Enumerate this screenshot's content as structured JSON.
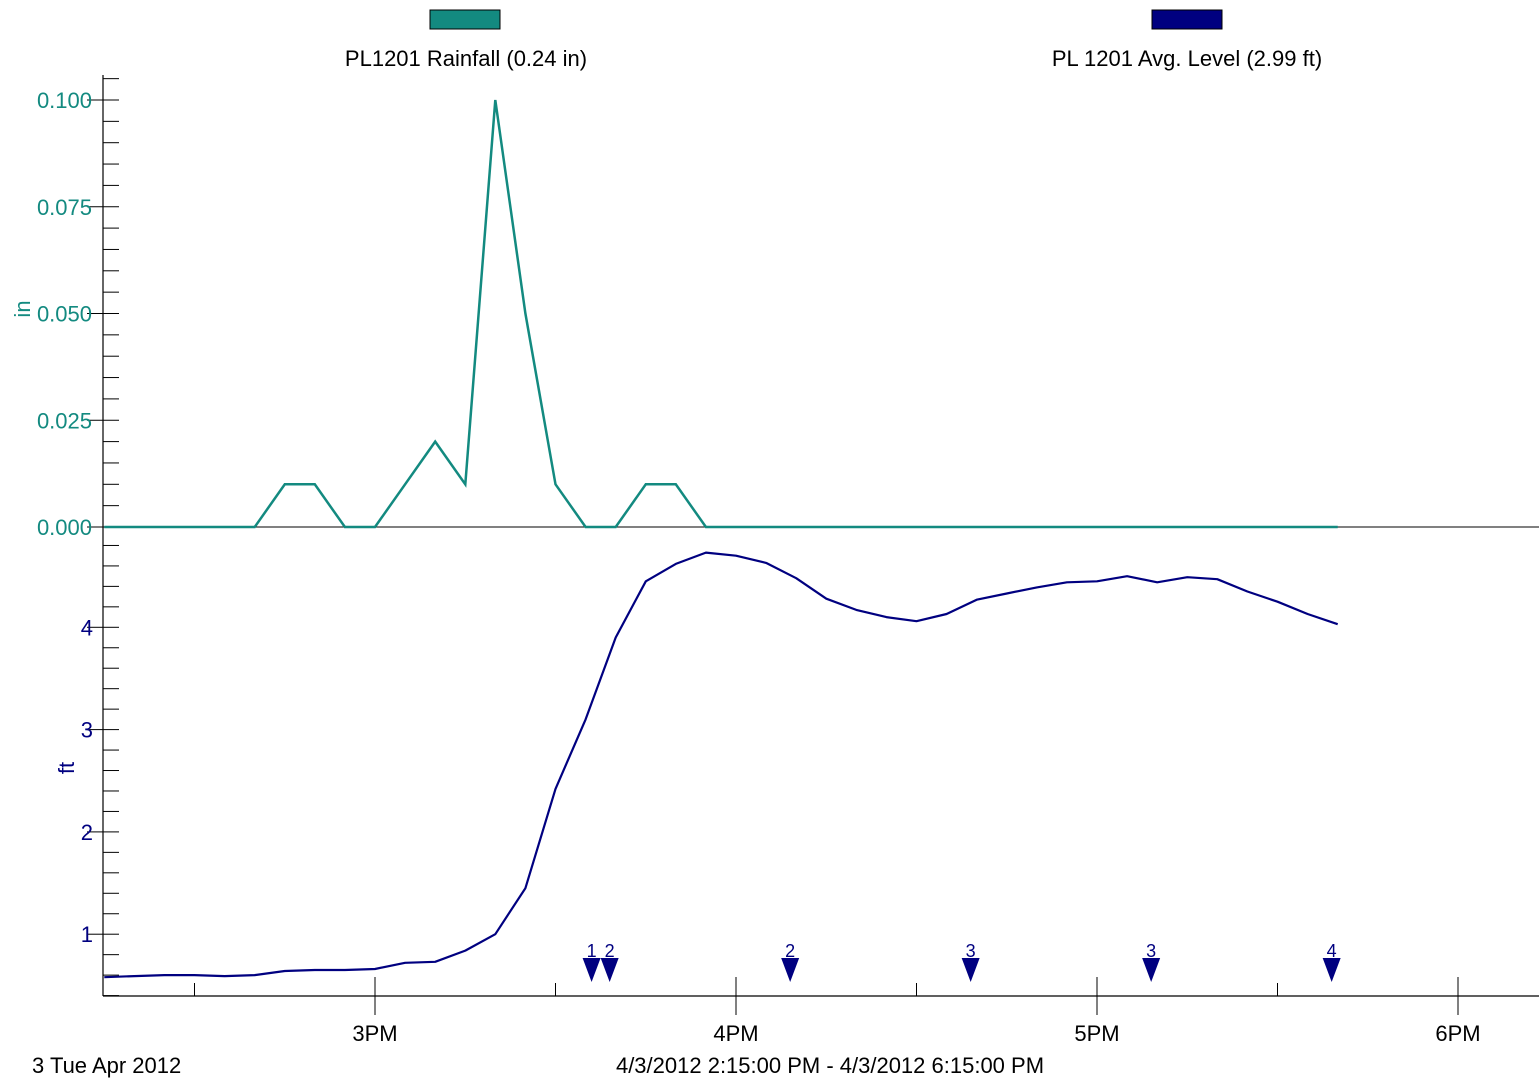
{
  "legend": {
    "rainfall_label": "PL1201 Rainfall (0.24 in)",
    "level_label": "PL 1201 Avg. Level (2.99 ft)"
  },
  "footer": {
    "date_label": "3 Tue Apr 2012",
    "range_label": "4/3/2012 2:15:00 PM - 4/3/2012 6:15:00 PM"
  },
  "colors": {
    "rainfall": "#138a80",
    "level": "#000080",
    "axis": "#000000",
    "background": "#ffffff"
  },
  "chart_data": [
    {
      "type": "line",
      "series": [
        {
          "name": "PL1201 Rainfall (0.24 in)",
          "color": "#138a80",
          "x": [
            "2:15 PM",
            "2:40 PM",
            "2:45 PM",
            "2:50 PM",
            "2:55 PM",
            "3:00 PM",
            "3:05 PM",
            "3:10 PM",
            "3:15 PM",
            "3:20 PM",
            "3:25 PM",
            "3:30 PM",
            "3:35 PM",
            "3:40 PM",
            "3:45 PM",
            "3:50 PM",
            "3:55 PM",
            "4:00 PM",
            "5:40 PM"
          ],
          "values": [
            0,
            0,
            0.01,
            0.01,
            0,
            0,
            0.01,
            0.02,
            0.01,
            0.1,
            0.05,
            0.01,
            0,
            0,
            0.01,
            0.01,
            0,
            0,
            0
          ]
        }
      ],
      "ylabel": "in",
      "yticks": [
        "0.000",
        "0.025",
        "0.050",
        "0.075",
        "0.100"
      ],
      "ylim": [
        0,
        0.1
      ]
    },
    {
      "type": "line",
      "series": [
        {
          "name": "PL 1201 Avg. Level (2.99 ft)",
          "color": "#000080",
          "x": [
            "2:15 PM",
            "2:20 PM",
            "2:25 PM",
            "2:30 PM",
            "2:35 PM",
            "2:40 PM",
            "2:45 PM",
            "2:50 PM",
            "2:55 PM",
            "3:00 PM",
            "3:05 PM",
            "3:10 PM",
            "3:15 PM",
            "3:20 PM",
            "3:25 PM",
            "3:30 PM",
            "3:35 PM",
            "3:40 PM",
            "3:45 PM",
            "3:50 PM",
            "3:55 PM",
            "4:00 PM",
            "4:05 PM",
            "4:10 PM",
            "4:15 PM",
            "4:20 PM",
            "4:25 PM",
            "4:30 PM",
            "4:35 PM",
            "4:40 PM",
            "4:45 PM",
            "4:50 PM",
            "4:55 PM",
            "5:00 PM",
            "5:05 PM",
            "5:10 PM",
            "5:15 PM",
            "5:20 PM",
            "5:25 PM",
            "5:30 PM",
            "5:35 PM",
            "5:40 PM"
          ],
          "values": [
            0.58,
            0.59,
            0.6,
            0.6,
            0.59,
            0.6,
            0.64,
            0.65,
            0.65,
            0.66,
            0.72,
            0.73,
            0.84,
            1.0,
            1.45,
            2.42,
            3.1,
            3.9,
            4.45,
            4.62,
            4.73,
            4.7,
            4.63,
            4.48,
            4.28,
            4.17,
            4.1,
            4.06,
            4.13,
            4.27,
            4.33,
            4.39,
            4.44,
            4.45,
            4.5,
            4.44,
            4.49,
            4.47,
            4.35,
            4.25,
            4.13,
            4.03
          ]
        }
      ],
      "ylabel": "ft",
      "yticks": [
        "1",
        "2",
        "3",
        "4"
      ],
      "ylim": [
        0.35,
        4.95
      ]
    }
  ],
  "x_axis": {
    "ticks": [
      "3PM",
      "4PM",
      "5PM",
      "6PM"
    ],
    "range": [
      "2:15 PM",
      "6:15 PM"
    ]
  },
  "markers": [
    {
      "label": "1",
      "time": "3:36 PM"
    },
    {
      "label": "2",
      "time": "3:39 PM"
    },
    {
      "label": "2",
      "time": "4:09 PM"
    },
    {
      "label": "3",
      "time": "4:39 PM"
    },
    {
      "label": "3",
      "time": "5:09 PM"
    },
    {
      "label": "4",
      "time": "5:39 PM"
    }
  ]
}
